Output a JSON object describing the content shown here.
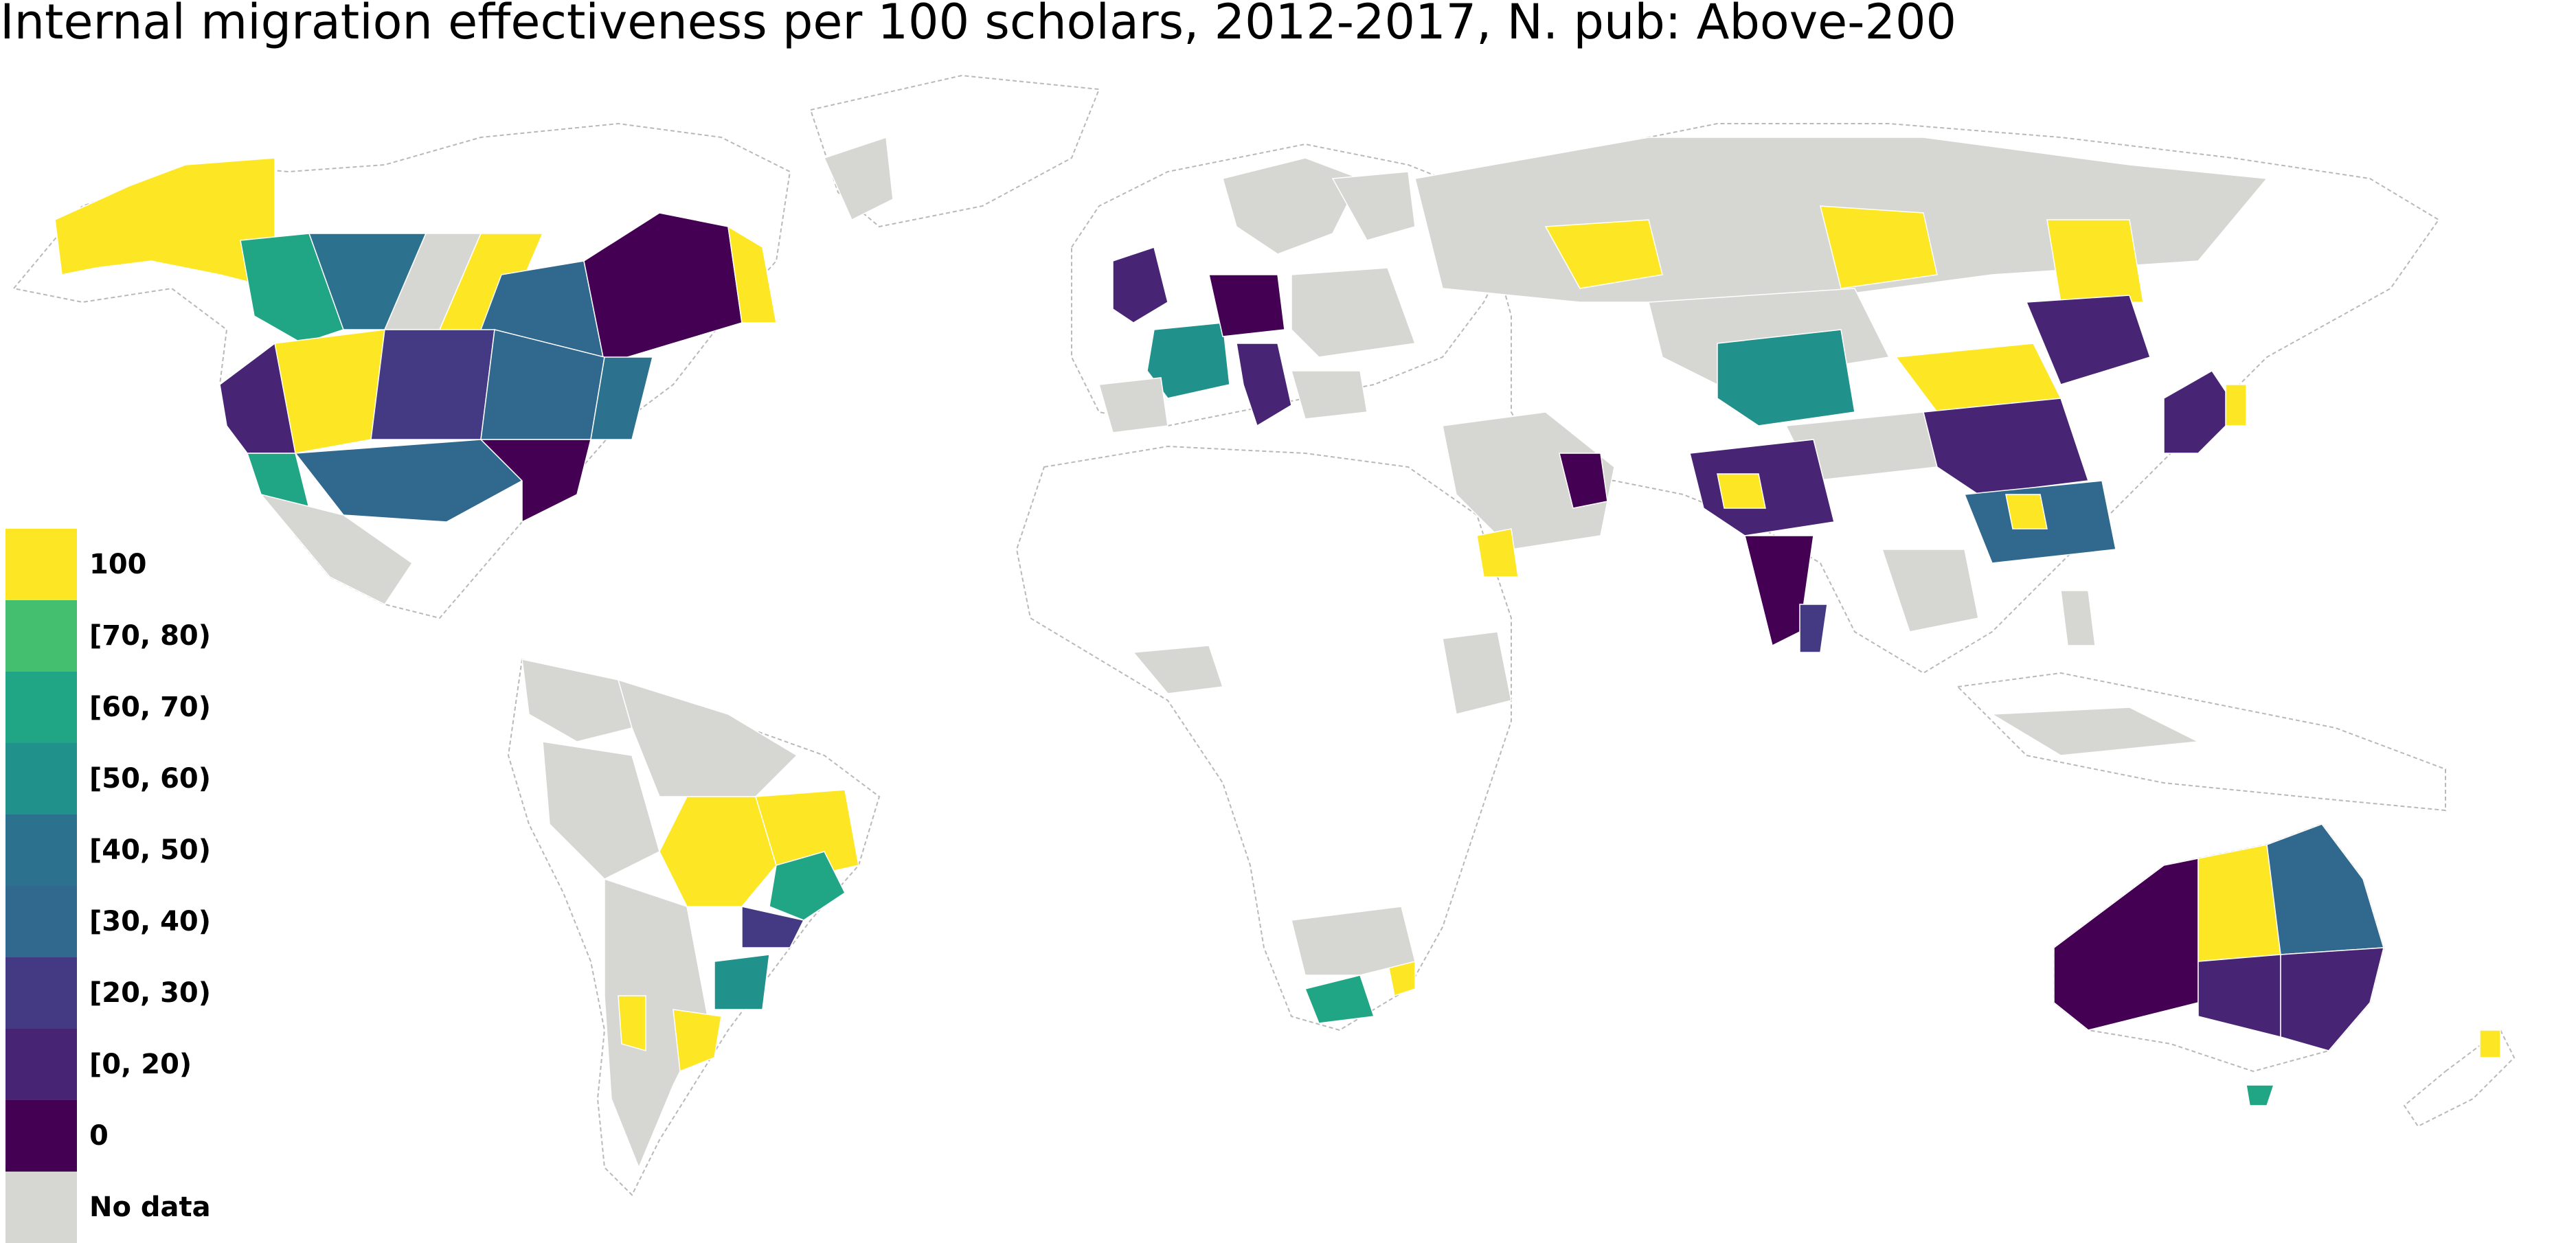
{
  "title": "Internal migration effectiveness per 100 scholars, 2012-2017, N. pub: Above-200",
  "colors": {
    "c100": "#fde725",
    "c70": "#44bf70",
    "c60": "#21a685",
    "c50": "#21918c",
    "c40": "#2c728e",
    "c30": "#31688e",
    "c20": "#443a83",
    "c0_20": "#482475",
    "c0": "#440154",
    "nodata": "#d6d6d2",
    "background_land": "#ffffff",
    "border": "#b9b9b9"
  },
  "legend": {
    "items": [
      {
        "label": "100",
        "color": "#fde725"
      },
      {
        "label": "[70, 80)",
        "color": "#44bf70"
      },
      {
        "label": "[60, 70)",
        "color": "#21a685"
      },
      {
        "label": "[50, 60)",
        "color": "#21918c"
      },
      {
        "label": "[40, 50)",
        "color": "#2c728e"
      },
      {
        "label": "[30, 40)",
        "color": "#31688e"
      },
      {
        "label": "[20, 30)",
        "color": "#443a83"
      },
      {
        "label": "[0, 20)",
        "color": "#482475"
      },
      {
        "label": "0",
        "color": "#440154"
      },
      {
        "label": "No data",
        "color": "#d6d6d2"
      }
    ]
  }
}
